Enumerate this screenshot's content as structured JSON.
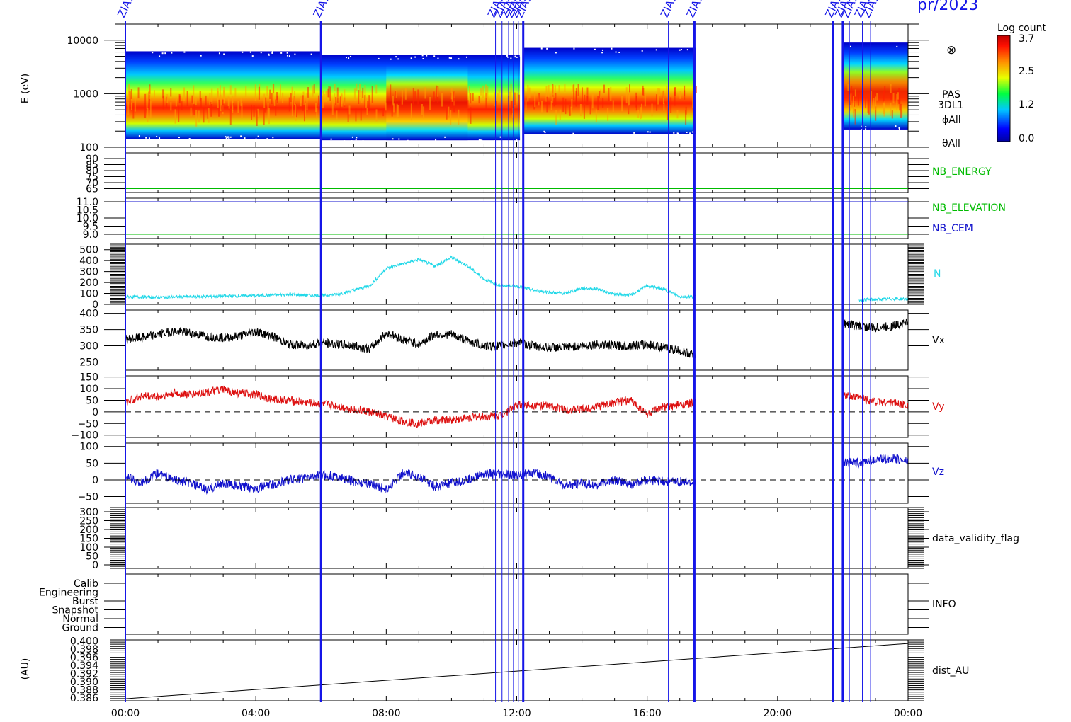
{
  "header": {
    "date_fragment": "pr/2023",
    "event_label": "ZIAS"
  },
  "colorbar": {
    "title": "Log count",
    "ticks": [
      "3.7",
      "2.5",
      "1.2",
      "0.0"
    ]
  },
  "spectrogram_labels": [
    "PAS",
    "3DL1",
    "ϕAll",
    "θAll"
  ],
  "overlay_symbol": "⊗",
  "x_axis": {
    "ticks": [
      "00:00",
      "04:00",
      "08:00",
      "12:00",
      "16:00",
      "20:00",
      "00:00"
    ]
  },
  "colors": {
    "frame": "#000000",
    "event_lines": "#1515e8",
    "N": "#22d8e8",
    "Vx": "#000000",
    "Vy": "#dd1111",
    "Vz": "#1111cc",
    "NB_ENERGY": "#00bb00",
    "NB_ELEVATION": "#00bb00",
    "NB_CEM": "#1111cc"
  },
  "chart_data": [
    {
      "type": "heatmap",
      "name": "PAS 3DL1 energy spectrogram",
      "ylabel": "E (eV)",
      "yscale": "log",
      "ylim": [
        100,
        20000
      ],
      "y_ticks": [
        "10000",
        "1000",
        "100"
      ],
      "xlim_hours": [
        0,
        24
      ],
      "colorbar_range": [
        0.0,
        3.7
      ],
      "data_blocks_hours": [
        [
          0,
          6.0
        ],
        [
          6.0,
          12.1
        ],
        [
          12.2,
          17.5
        ],
        [
          22.0,
          24.0
        ]
      ],
      "peak_energy_eV_approx": 700
    },
    {
      "type": "line",
      "series": [
        {
          "name": "NB_ENERGY",
          "value": 65
        }
      ],
      "y_ticks": [
        "90",
        "85",
        "80",
        "75",
        "70",
        "65"
      ]
    },
    {
      "type": "line",
      "series": [
        {
          "name": "NB_ELEVATION",
          "value": 9.0
        },
        {
          "name": "NB_CEM",
          "value": 11.0
        }
      ],
      "y_ticks": [
        "11.0",
        "10.5",
        "10.0",
        "9.5",
        "9.0"
      ]
    },
    {
      "type": "line",
      "series": [
        {
          "name": "N"
        }
      ],
      "ylim": [
        0,
        550
      ],
      "y_ticks": [
        "500",
        "400",
        "300",
        "200",
        "100",
        "0"
      ],
      "x_hours": [
        0,
        1,
        2,
        3,
        4,
        5,
        6,
        6.5,
        7.0,
        7.5,
        8.0,
        8.5,
        9.0,
        9.5,
        10.0,
        10.5,
        11.0,
        11.5,
        12.0,
        12.5,
        13.0,
        13.5,
        14.0,
        14.5,
        15.0,
        15.5,
        16.0,
        16.5,
        17.0,
        17.5,
        22.5,
        23.0,
        23.5,
        24.0
      ],
      "values": [
        70,
        65,
        70,
        75,
        80,
        90,
        80,
        90,
        130,
        170,
        330,
        370,
        410,
        350,
        430,
        350,
        230,
        170,
        170,
        130,
        110,
        100,
        150,
        140,
        90,
        85,
        170,
        140,
        70,
        70,
        40,
        45,
        50,
        50
      ]
    },
    {
      "type": "line",
      "series": [
        {
          "name": "Vx"
        }
      ],
      "ylim": [
        225,
        410
      ],
      "y_ticks": [
        "400",
        "350",
        "300",
        "250"
      ],
      "x_hours": [
        0,
        0.5,
        1.0,
        1.5,
        2.0,
        2.5,
        3.0,
        3.5,
        4.0,
        4.5,
        5.0,
        5.5,
        6.0,
        6.5,
        7.0,
        7.5,
        8.0,
        8.5,
        9.0,
        9.5,
        10.0,
        10.5,
        11.0,
        11.5,
        12.0,
        12.5,
        13.0,
        13.5,
        14.0,
        14.5,
        15.0,
        15.5,
        16.0,
        16.5,
        17.0,
        17.5,
        22.0,
        22.5,
        23.0,
        23.5,
        24.0
      ],
      "values": [
        320,
        325,
        335,
        345,
        340,
        330,
        325,
        330,
        345,
        330,
        305,
        300,
        310,
        305,
        300,
        290,
        340,
        320,
        305,
        335,
        335,
        315,
        300,
        300,
        310,
        300,
        295,
        295,
        300,
        305,
        300,
        300,
        305,
        295,
        285,
        270,
        370,
        360,
        355,
        360,
        375
      ]
    },
    {
      "type": "line",
      "series": [
        {
          "name": "Vy"
        }
      ],
      "ylim": [
        -110,
        155
      ],
      "y_ticks": [
        "150",
        "100",
        "50",
        "0",
        "−50",
        "−100"
      ],
      "x_hours": [
        0,
        0.5,
        1.0,
        1.5,
        2.0,
        2.5,
        3.0,
        3.5,
        4.0,
        4.5,
        5.0,
        5.5,
        6.0,
        6.5,
        7.0,
        7.5,
        8.0,
        8.5,
        9.0,
        9.5,
        10.0,
        10.5,
        11.0,
        11.5,
        12.0,
        12.5,
        13.0,
        13.5,
        14.0,
        14.5,
        15.0,
        15.5,
        16.0,
        16.5,
        17.0,
        17.5,
        22.0,
        22.5,
        23.0,
        23.5,
        24.0
      ],
      "values": [
        40,
        70,
        65,
        80,
        75,
        85,
        95,
        80,
        75,
        55,
        50,
        40,
        35,
        25,
        10,
        0,
        -20,
        -40,
        -50,
        -35,
        -35,
        -25,
        -20,
        -15,
        30,
        30,
        25,
        10,
        10,
        25,
        40,
        50,
        -10,
        20,
        30,
        40,
        70,
        60,
        45,
        40,
        30
      ]
    },
    {
      "type": "line",
      "series": [
        {
          "name": "Vz"
        }
      ],
      "ylim": [
        -70,
        110
      ],
      "y_ticks": [
        "100",
        "50",
        "0",
        "−50"
      ],
      "x_hours": [
        0,
        0.5,
        1.0,
        1.5,
        2.0,
        2.5,
        3.0,
        3.5,
        4.0,
        4.5,
        5.0,
        5.5,
        6.0,
        6.5,
        7.0,
        7.5,
        8.0,
        8.5,
        9.0,
        9.5,
        10.0,
        10.5,
        11.0,
        11.5,
        12.0,
        12.5,
        13.0,
        13.5,
        14.0,
        14.5,
        15.0,
        15.5,
        16.0,
        16.5,
        17.0,
        17.5,
        22.0,
        22.5,
        23.0,
        23.5,
        24.0
      ],
      "values": [
        10,
        -10,
        20,
        0,
        -10,
        -30,
        -10,
        -20,
        -25,
        -15,
        0,
        5,
        15,
        10,
        -5,
        -10,
        -30,
        20,
        10,
        -20,
        -10,
        0,
        20,
        15,
        15,
        20,
        10,
        -20,
        -10,
        -15,
        0,
        -15,
        0,
        -5,
        -5,
        -10,
        55,
        50,
        60,
        65,
        55
      ]
    },
    {
      "type": "line",
      "series": [
        {
          "name": "data_validity_flag"
        }
      ],
      "y_ticks": [
        "300",
        "250",
        "200",
        "150",
        "100",
        "50",
        "0"
      ]
    },
    {
      "type": "line",
      "series": [
        {
          "name": "INFO"
        }
      ],
      "y_ticks": [
        "Calib",
        "Engineering",
        "Burst",
        "Snapshot",
        "Normal",
        "Ground"
      ]
    },
    {
      "type": "line",
      "series": [
        {
          "name": "dist_AU"
        }
      ],
      "ylabel": "(AU)",
      "ylim": [
        0.386,
        0.4
      ],
      "y_ticks": [
        "0.400",
        "0.398",
        "0.396",
        "0.394",
        "0.392",
        "0.390",
        "0.388",
        "0.386"
      ],
      "x_hours": [
        0,
        24
      ],
      "values": [
        0.3858,
        0.3994
      ]
    }
  ],
  "event_lines_hours": [
    6.0,
    11.35,
    11.55,
    11.75,
    11.9,
    12.05,
    12.2,
    16.65,
    17.45,
    21.7,
    22.0,
    22.2,
    22.6,
    22.85
  ]
}
